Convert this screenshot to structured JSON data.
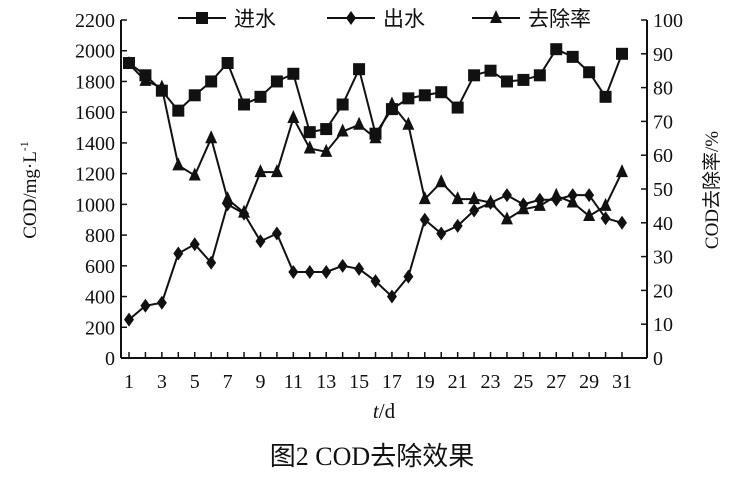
{
  "chart_data": {
    "type": "line",
    "caption": "图2 COD去除效果",
    "xlabel_italic": "t",
    "xlabel_rest": "/d",
    "ylabel_left": "COD/mg·L",
    "ylabel_left_sup": "-1",
    "ylabel_right": "COD去除率/%",
    "xlim": [
      1,
      31
    ],
    "ylim_left": [
      0,
      2200
    ],
    "ylim_right": [
      0,
      100
    ],
    "x_ticks": [
      1,
      3,
      5,
      7,
      9,
      11,
      13,
      15,
      17,
      19,
      21,
      23,
      25,
      27,
      29,
      31
    ],
    "y_left_ticks": [
      0,
      200,
      400,
      600,
      800,
      1000,
      1200,
      1400,
      1600,
      1800,
      2000,
      2200
    ],
    "y_right_ticks": [
      0,
      10,
      20,
      30,
      40,
      50,
      60,
      70,
      80,
      90,
      100
    ],
    "grid": false,
    "legend_placement": "top",
    "x": [
      1,
      2,
      3,
      4,
      5,
      6,
      7,
      8,
      9,
      10,
      11,
      12,
      13,
      14,
      15,
      16,
      17,
      18,
      19,
      20,
      21,
      22,
      23,
      24,
      25,
      26,
      27,
      28,
      29,
      30,
      31
    ],
    "series": [
      {
        "name": "进水",
        "marker": "square",
        "axis": "left",
        "values": [
          1920,
          1840,
          1740,
          1610,
          1710,
          1800,
          1920,
          1650,
          1700,
          1800,
          1850,
          1470,
          1490,
          1650,
          1880,
          1460,
          1620,
          1690,
          1710,
          1730,
          1630,
          1840,
          1870,
          1800,
          1810,
          1840,
          2010,
          1960,
          1860,
          1700,
          1980
        ]
      },
      {
        "name": "出水",
        "marker": "diamond",
        "axis": "left",
        "values": [
          250,
          340,
          360,
          680,
          740,
          620,
          1000,
          940,
          760,
          810,
          560,
          560,
          560,
          600,
          580,
          500,
          400,
          530,
          900,
          810,
          860,
          960,
          1010,
          1060,
          1000,
          1030,
          1030,
          1060,
          1060,
          910,
          880
        ]
      },
      {
        "name": "去除率",
        "marker": "triangle",
        "axis": "right",
        "values": [
          87,
          82,
          80,
          57,
          54,
          65,
          47,
          43,
          55,
          55,
          71,
          62,
          61,
          67,
          69,
          65,
          75,
          69,
          47,
          52,
          47,
          47,
          46,
          41,
          44,
          45,
          48,
          46,
          42,
          45,
          55
        ]
      }
    ],
    "color": "#111111"
  }
}
